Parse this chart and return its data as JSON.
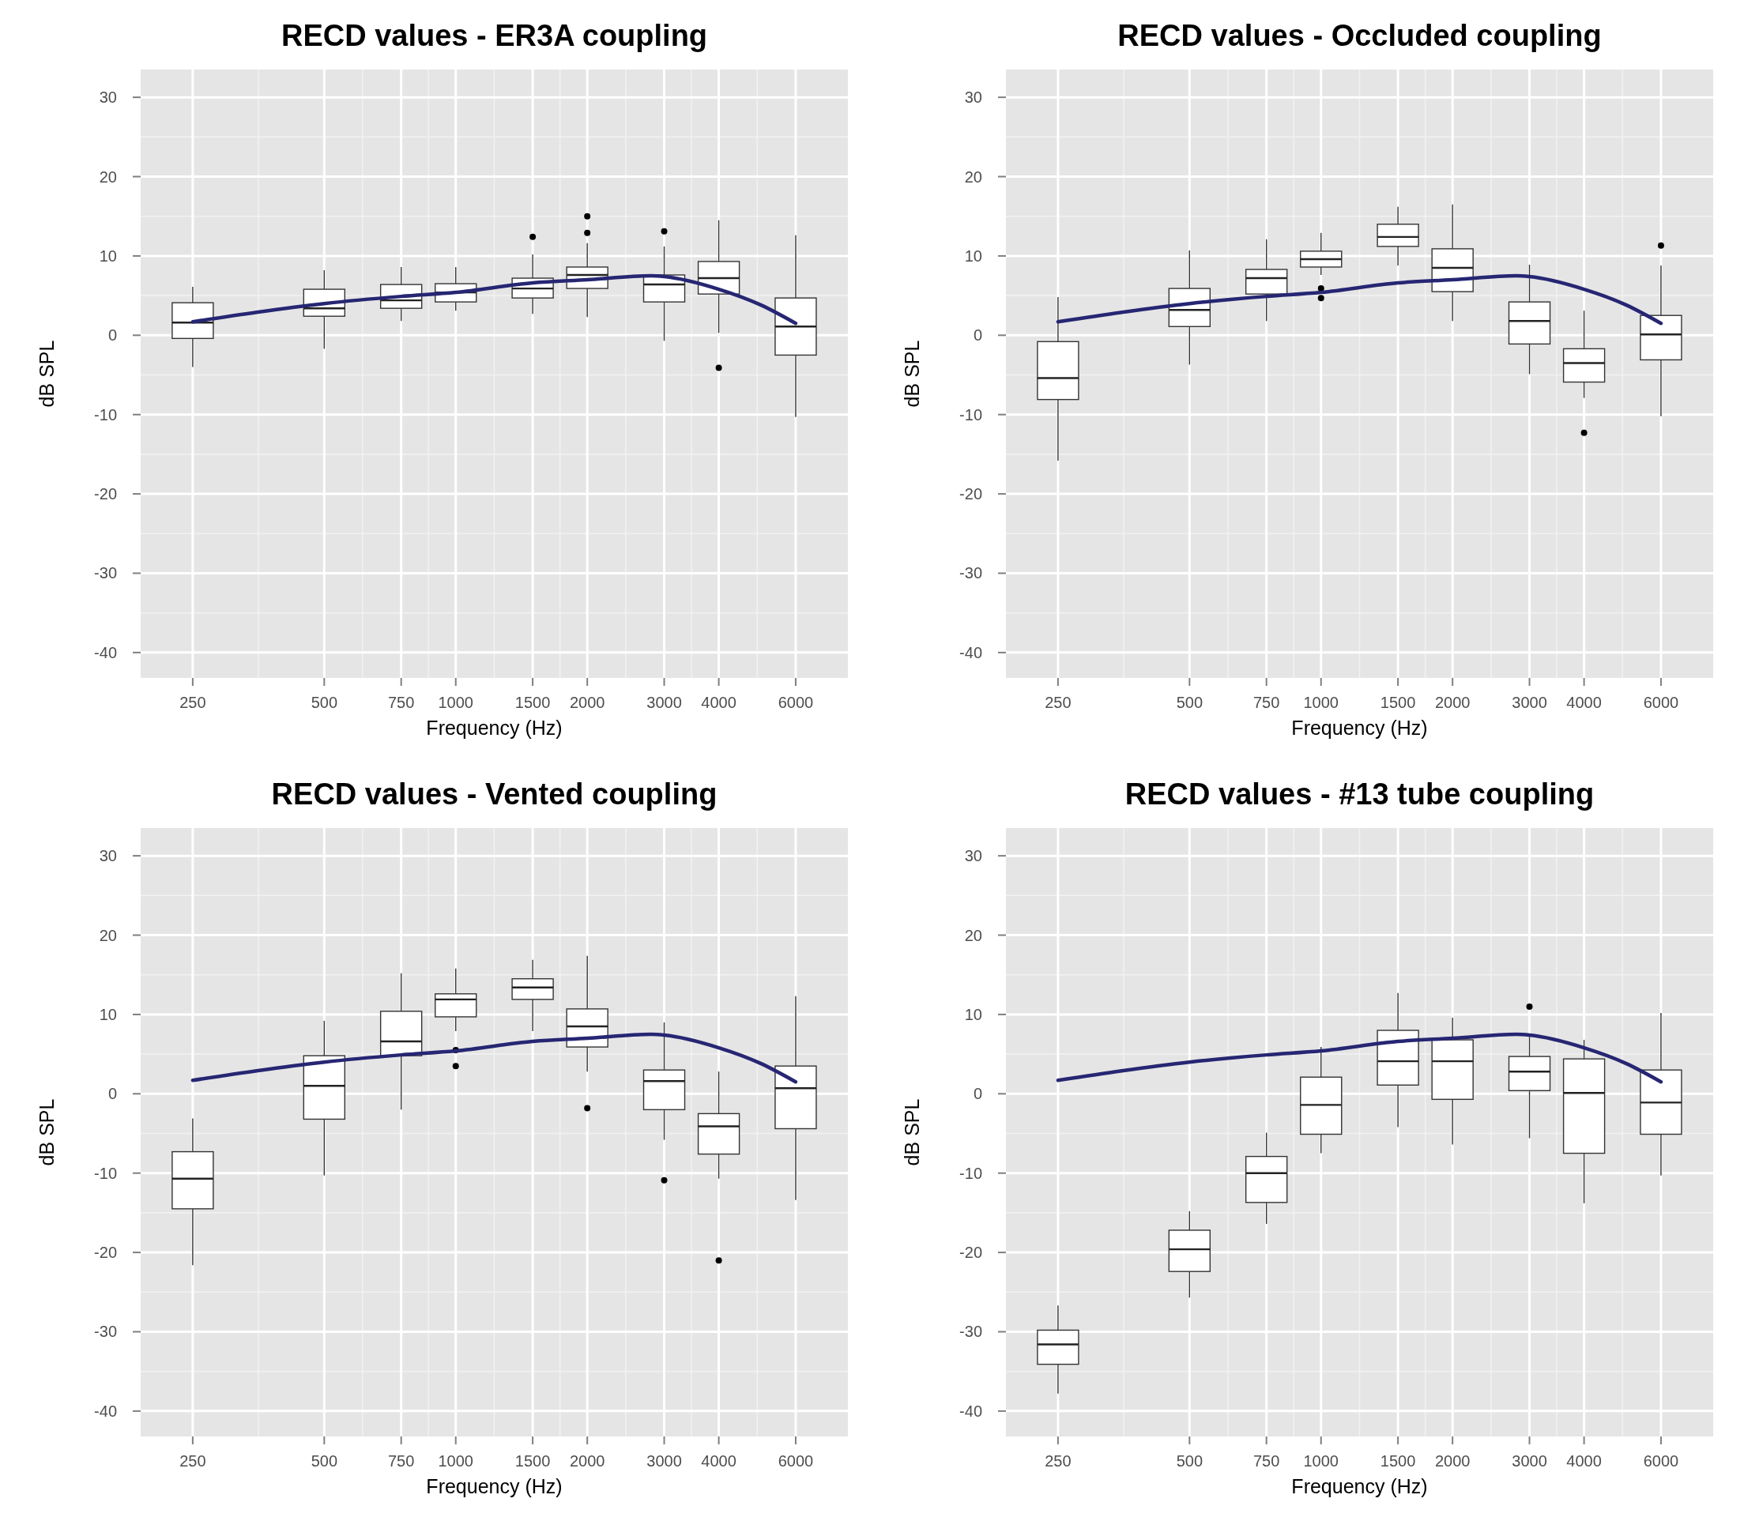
{
  "chart_data": [
    {
      "type": "box",
      "title": "RECD values - ER3A coupling",
      "xlabel": "Frequency (Hz)",
      "ylabel": "dB SPL",
      "log": "x",
      "grid": true,
      "xlim": [
        190,
        7900
      ],
      "xticks": [
        250,
        500,
        750,
        1000,
        1500,
        2000,
        3000,
        4000,
        6000
      ],
      "ylim": [
        -43.2,
        33.5
      ],
      "yticks": [
        -40,
        -30,
        -20,
        -10,
        0,
        10,
        20,
        30
      ],
      "x": [
        250,
        500,
        750,
        1000,
        1500,
        2000,
        3000,
        4000,
        6000
      ],
      "boxes": [
        {
          "low": -4.0,
          "q1": -0.4,
          "median": 1.6,
          "q3": 4.1,
          "high": 6.1
        },
        {
          "low": -1.7,
          "q1": 2.4,
          "median": 3.4,
          "q3": 5.8,
          "high": 8.2
        },
        {
          "low": 1.8,
          "q1": 3.4,
          "median": 4.4,
          "q3": 6.4,
          "high": 8.6
        },
        {
          "low": 3.1,
          "q1": 4.2,
          "median": 5.4,
          "q3": 6.5,
          "high": 8.6
        },
        {
          "low": 2.7,
          "q1": 4.7,
          "median": 5.9,
          "q3": 7.2,
          "high": 10.2,
          "outliers": [
            12.4
          ]
        },
        {
          "low": 2.3,
          "q1": 5.9,
          "median": 7.6,
          "q3": 8.6,
          "high": 11.6,
          "outliers": [
            15.0,
            12.9
          ]
        },
        {
          "low": -0.7,
          "q1": 4.2,
          "median": 6.4,
          "q3": 7.6,
          "high": 11.2,
          "outliers": [
            13.1
          ]
        },
        {
          "low": 0.3,
          "q1": 5.2,
          "median": 7.2,
          "q3": 9.3,
          "high": 14.5,
          "outliers": [
            -4.1
          ]
        },
        {
          "low": -10.3,
          "q1": -2.5,
          "median": 1.1,
          "q3": 4.7,
          "high": 12.6
        }
      ],
      "series": [
        {
          "type": "line",
          "color": "#262673",
          "x": [
            250,
            350,
            500,
            750,
            1000,
            1500,
            2000,
            2800,
            3000,
            4000,
            5000,
            6000
          ],
          "values": [
            1.7,
            2.9,
            4.0,
            4.9,
            5.4,
            6.6,
            7.0,
            7.5,
            7.4,
            5.8,
            3.8,
            1.5
          ]
        }
      ]
    },
    {
      "type": "box",
      "title": "RECD values - Occluded coupling",
      "xlabel": "Frequency (Hz)",
      "ylabel": "dB SPL",
      "log": "x",
      "grid": true,
      "xlim": [
        190,
        7900
      ],
      "xticks": [
        250,
        500,
        750,
        1000,
        1500,
        2000,
        3000,
        4000,
        6000
      ],
      "ylim": [
        -43.2,
        33.5
      ],
      "yticks": [
        -40,
        -30,
        -20,
        -10,
        0,
        10,
        20,
        30
      ],
      "x": [
        250,
        500,
        750,
        1000,
        1500,
        2000,
        3000,
        4000,
        6000
      ],
      "boxes": [
        {
          "low": -15.8,
          "q1": -8.1,
          "median": -5.4,
          "q3": -0.8,
          "high": 4.8
        },
        {
          "low": -3.7,
          "q1": 1.1,
          "median": 3.2,
          "q3": 5.9,
          "high": 10.7
        },
        {
          "low": 1.8,
          "q1": 5.2,
          "median": 7.2,
          "q3": 8.3,
          "high": 12.1
        },
        {
          "low": 7.6,
          "q1": 8.6,
          "median": 9.6,
          "q3": 10.6,
          "high": 12.9,
          "outliers": [
            5.9,
            4.7
          ]
        },
        {
          "low": 8.8,
          "q1": 11.2,
          "median": 12.4,
          "q3": 14.0,
          "high": 16.2
        },
        {
          "low": 1.8,
          "q1": 5.5,
          "median": 8.5,
          "q3": 10.9,
          "high": 16.5
        },
        {
          "low": -4.9,
          "q1": -1.1,
          "median": 1.8,
          "q3": 4.2,
          "high": 8.9
        },
        {
          "low": -7.9,
          "q1": -5.9,
          "median": -3.5,
          "q3": -1.7,
          "high": 3.1,
          "outliers": [
            -12.3
          ]
        },
        {
          "low": -10.2,
          "q1": -3.1,
          "median": 0.1,
          "q3": 2.5,
          "high": 8.8,
          "outliers": [
            11.3
          ]
        }
      ],
      "series": [
        {
          "type": "line",
          "color": "#262673",
          "x": [
            250,
            350,
            500,
            750,
            1000,
            1500,
            2000,
            2800,
            3000,
            4000,
            5000,
            6000
          ],
          "values": [
            1.7,
            2.9,
            4.0,
            4.9,
            5.4,
            6.6,
            7.0,
            7.5,
            7.4,
            5.8,
            3.8,
            1.5
          ]
        }
      ]
    },
    {
      "type": "box",
      "title": "RECD values - Vented coupling",
      "xlabel": "Frequency (Hz)",
      "ylabel": "dB SPL",
      "log": "x",
      "grid": true,
      "xlim": [
        190,
        7900
      ],
      "xticks": [
        250,
        500,
        750,
        1000,
        1500,
        2000,
        3000,
        4000,
        6000
      ],
      "ylim": [
        -43.2,
        33.5
      ],
      "yticks": [
        -40,
        -30,
        -20,
        -10,
        0,
        10,
        20,
        30
      ],
      "x": [
        250,
        500,
        750,
        1000,
        1500,
        2000,
        3000,
        4000,
        6000
      ],
      "boxes": [
        {
          "low": -21.6,
          "q1": -14.5,
          "median": -10.7,
          "q3": -7.3,
          "high": -3.1
        },
        {
          "low": -10.3,
          "q1": -3.2,
          "median": 1.0,
          "q3": 4.8,
          "high": 9.2
        },
        {
          "low": -2.0,
          "q1": 4.8,
          "median": 6.6,
          "q3": 10.4,
          "high": 15.2
        },
        {
          "low": 7.9,
          "q1": 9.7,
          "median": 11.9,
          "q3": 12.6,
          "high": 15.8,
          "outliers": [
            5.5,
            3.5
          ]
        },
        {
          "low": 7.9,
          "q1": 11.9,
          "median": 13.4,
          "q3": 14.5,
          "high": 16.9
        },
        {
          "low": 2.8,
          "q1": 5.9,
          "median": 8.5,
          "q3": 10.7,
          "high": 17.4,
          "outliers": [
            -1.8
          ]
        },
        {
          "low": -5.8,
          "q1": -2.0,
          "median": 1.6,
          "q3": 3.0,
          "high": 9.0,
          "outliers": [
            -10.9
          ]
        },
        {
          "low": -10.7,
          "q1": -7.6,
          "median": -4.1,
          "q3": -2.5,
          "high": 2.8,
          "outliers": [
            -21.0
          ]
        },
        {
          "low": -13.4,
          "q1": -4.4,
          "median": 0.7,
          "q3": 3.5,
          "high": 12.3
        }
      ],
      "series": [
        {
          "type": "line",
          "color": "#262673",
          "x": [
            250,
            350,
            500,
            750,
            1000,
            1500,
            2000,
            2800,
            3000,
            4000,
            5000,
            6000
          ],
          "values": [
            1.7,
            2.9,
            4.0,
            4.9,
            5.4,
            6.6,
            7.0,
            7.5,
            7.4,
            5.8,
            3.8,
            1.5
          ]
        }
      ]
    },
    {
      "type": "box",
      "title": "RECD values - #13 tube coupling",
      "xlabel": "Frequency (Hz)",
      "ylabel": "dB SPL",
      "log": "x",
      "grid": true,
      "xlim": [
        190,
        7900
      ],
      "xticks": [
        250,
        500,
        750,
        1000,
        1500,
        2000,
        3000,
        4000,
        6000
      ],
      "ylim": [
        -43.2,
        33.5
      ],
      "yticks": [
        -40,
        -30,
        -20,
        -10,
        0,
        10,
        20,
        30
      ],
      "x": [
        250,
        500,
        750,
        1000,
        1500,
        2000,
        3000,
        4000,
        6000
      ],
      "boxes": [
        {
          "low": -37.8,
          "q1": -34.1,
          "median": -31.6,
          "q3": -29.8,
          "high": -26.7
        },
        {
          "low": -25.7,
          "q1": -22.4,
          "median": -19.6,
          "q3": -17.2,
          "high": -14.8
        },
        {
          "low": -16.4,
          "q1": -13.7,
          "median": -10.0,
          "q3": -7.9,
          "high": -4.9
        },
        {
          "low": -7.5,
          "q1": -5.1,
          "median": -1.4,
          "q3": 2.1,
          "high": 5.9
        },
        {
          "low": -4.2,
          "q1": 1.1,
          "median": 4.1,
          "q3": 8.0,
          "high": 12.7
        },
        {
          "low": -6.4,
          "q1": -0.7,
          "median": 4.1,
          "q3": 6.8,
          "high": 9.6
        },
        {
          "low": -5.6,
          "q1": 0.4,
          "median": 2.8,
          "q3": 4.7,
          "high": 7.5,
          "outliers": [
            11.0
          ]
        },
        {
          "low": -13.8,
          "q1": -7.5,
          "median": 0.1,
          "q3": 4.4,
          "high": 6.8
        },
        {
          "low": -10.3,
          "q1": -5.1,
          "median": -1.1,
          "q3": 3.0,
          "high": 10.2
        }
      ],
      "series": [
        {
          "type": "line",
          "color": "#262673",
          "x": [
            250,
            350,
            500,
            750,
            1000,
            1500,
            2000,
            2800,
            3000,
            4000,
            5000,
            6000
          ],
          "values": [
            1.7,
            2.9,
            4.0,
            4.9,
            5.4,
            6.6,
            7.0,
            7.5,
            7.4,
            5.8,
            3.8,
            1.5
          ]
        }
      ]
    }
  ]
}
